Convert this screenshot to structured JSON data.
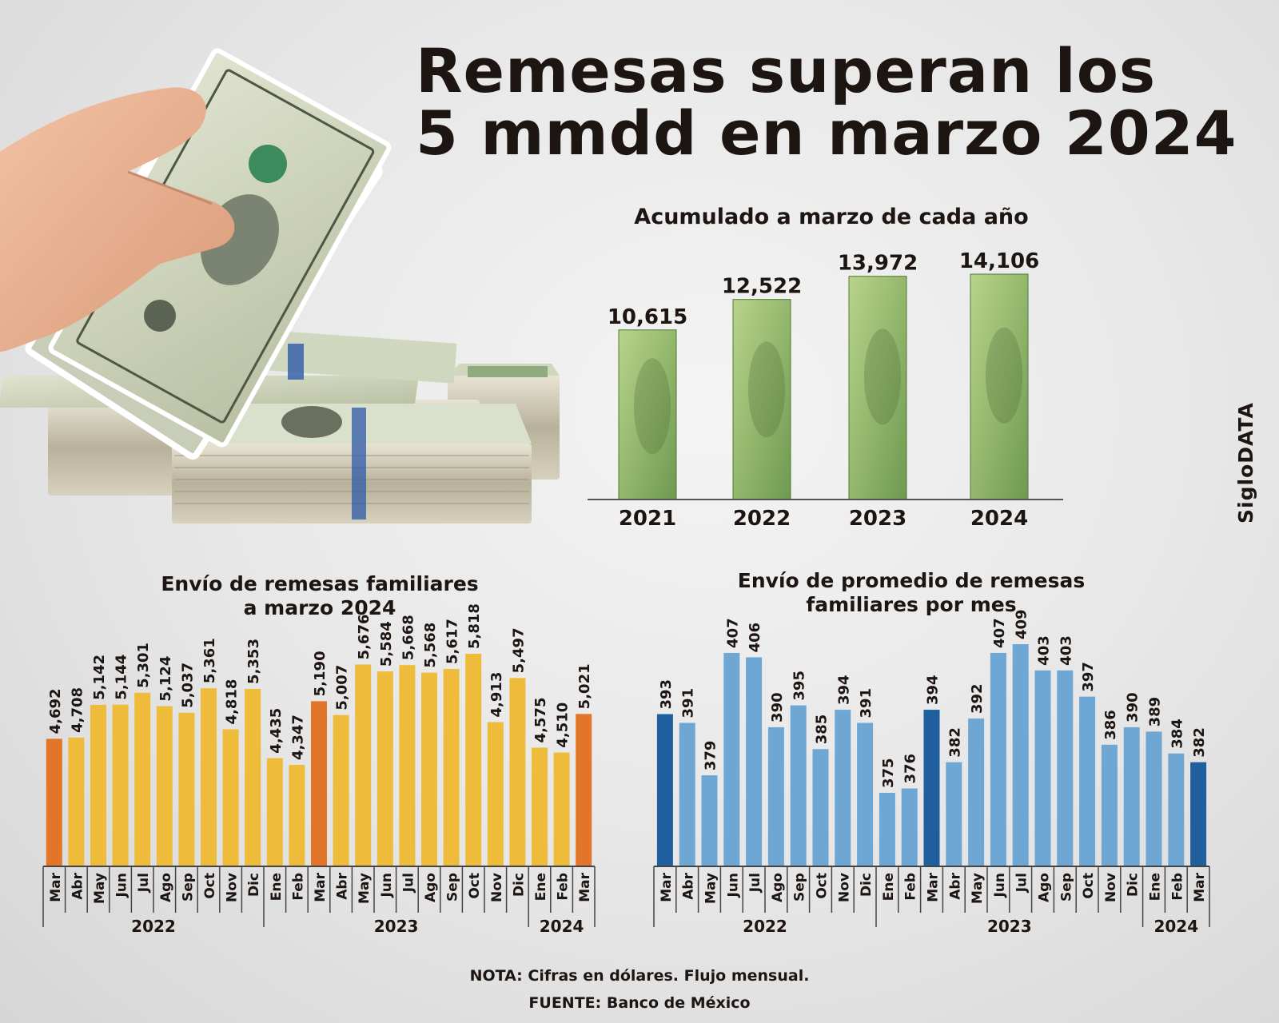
{
  "title_line1": "Remesas superan los",
  "title_line2": "5 mmdd en marzo 2024",
  "brand": "SigloDATA",
  "note": "NOTA: Cifras en dólares. Flujo mensual.",
  "source": "FUENTE: Banco de México",
  "colors": {
    "green_bar": "#6e9a4f",
    "green_light": "#b9d48c",
    "yellow_bar": "#eebc3a",
    "orange_bar": "#e2752a",
    "blue_bar": "#6ea6d4",
    "blue_dark": "#1f5f9e",
    "ink": "#1d1511"
  },
  "chart_data": [
    {
      "id": "acumulado",
      "type": "bar",
      "title": "Acumulado a marzo de cada año",
      "categories": [
        "2021",
        "2022",
        "2023",
        "2024"
      ],
      "values": [
        10615,
        12522,
        13972,
        14106
      ],
      "value_labels": [
        "10,615",
        "12,522",
        "13,972",
        "14,106"
      ],
      "ylim": [
        0,
        14106
      ],
      "grid": false,
      "legend": "none"
    },
    {
      "id": "envio",
      "type": "bar",
      "title_line1": "Envío de remesas familiares",
      "title_line2": "a marzo 2024",
      "categories": [
        "Mar",
        "Abr",
        "May",
        "Jun",
        "Jul",
        "Ago",
        "Sep",
        "Oct",
        "Nov",
        "Dic",
        "Ene",
        "Feb",
        "Mar",
        "Abr",
        "May",
        "Jun",
        "Jul",
        "Ago",
        "Sep",
        "Oct",
        "Nov",
        "Dic",
        "Ene",
        "Feb",
        "Mar"
      ],
      "values": [
        4692,
        4708,
        5142,
        5144,
        5301,
        5124,
        5037,
        5361,
        4818,
        5353,
        4435,
        4347,
        5190,
        5007,
        5676,
        5584,
        5668,
        5568,
        5617,
        5818,
        4913,
        5497,
        4575,
        4510,
        5021
      ],
      "value_labels": [
        "4,692",
        "4,708",
        "5,142",
        "5,144",
        "5,301",
        "5,124",
        "5,037",
        "5,361",
        "4,818",
        "5,353",
        "4,435",
        "4,347",
        "5,190",
        "5,007",
        "5,676",
        "5,584",
        "5,668",
        "5,568",
        "5,617",
        "5,818",
        "4,913",
        "5,497",
        "4,575",
        "4,510",
        "5,021"
      ],
      "highlight_indices": [
        0,
        12,
        24
      ],
      "year_groups": [
        {
          "label": "2022",
          "start": 0,
          "end": 9
        },
        {
          "label": "2023",
          "start": 10,
          "end": 21
        },
        {
          "label": "2024",
          "start": 22,
          "end": 24
        }
      ],
      "grid": false,
      "legend": "none"
    },
    {
      "id": "promedio",
      "type": "bar",
      "title_line1": "Envío de promedio de remesas",
      "title_line2": "familiares por mes",
      "categories": [
        "Mar",
        "Abr",
        "May",
        "Jun",
        "Jul",
        "Ago",
        "Sep",
        "Oct",
        "Nov",
        "Dic",
        "Ene",
        "Feb",
        "Mar",
        "Abr",
        "May",
        "Jun",
        "Jul",
        "Ago",
        "Sep",
        "Oct",
        "Nov",
        "Dic",
        "Ene",
        "Feb",
        "Mar"
      ],
      "values": [
        393,
        391,
        379,
        407,
        406,
        390,
        395,
        385,
        394,
        391,
        375,
        376,
        394,
        382,
        392,
        407,
        409,
        403,
        403,
        397,
        386,
        390,
        389,
        384,
        382
      ],
      "value_labels": [
        "393",
        "391",
        "379",
        "407",
        "406",
        "390",
        "395",
        "385",
        "394",
        "391",
        "375",
        "376",
        "394",
        "382",
        "392",
        "407",
        "409",
        "403",
        "403",
        "397",
        "386",
        "390",
        "389",
        "384",
        "382"
      ],
      "highlight_indices": [
        0,
        12,
        24
      ],
      "year_groups": [
        {
          "label": "2022",
          "start": 0,
          "end": 9
        },
        {
          "label": "2023",
          "start": 10,
          "end": 21
        },
        {
          "label": "2024",
          "start": 22,
          "end": 24
        }
      ],
      "grid": false,
      "legend": "none"
    }
  ]
}
